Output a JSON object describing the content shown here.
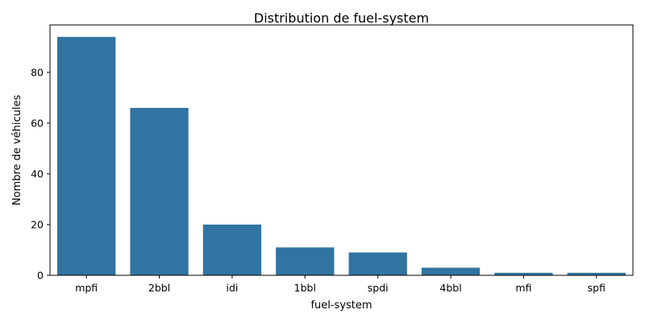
{
  "chart_data": {
    "type": "bar",
    "title": "Distribution de fuel-system",
    "xlabel": "fuel-system",
    "ylabel": "Nombre de véhicules",
    "categories": [
      "mpfi",
      "2bbl",
      "idi",
      "1bbl",
      "spdi",
      "4bbl",
      "mfi",
      "spfi"
    ],
    "values": [
      94,
      66,
      20,
      11,
      9,
      3,
      1,
      1
    ],
    "ylim": [
      0,
      98.7
    ],
    "yticks": [
      0,
      20,
      40,
      60,
      80
    ],
    "grid": false,
    "legend": "none",
    "bar_color": "#3274a1"
  }
}
